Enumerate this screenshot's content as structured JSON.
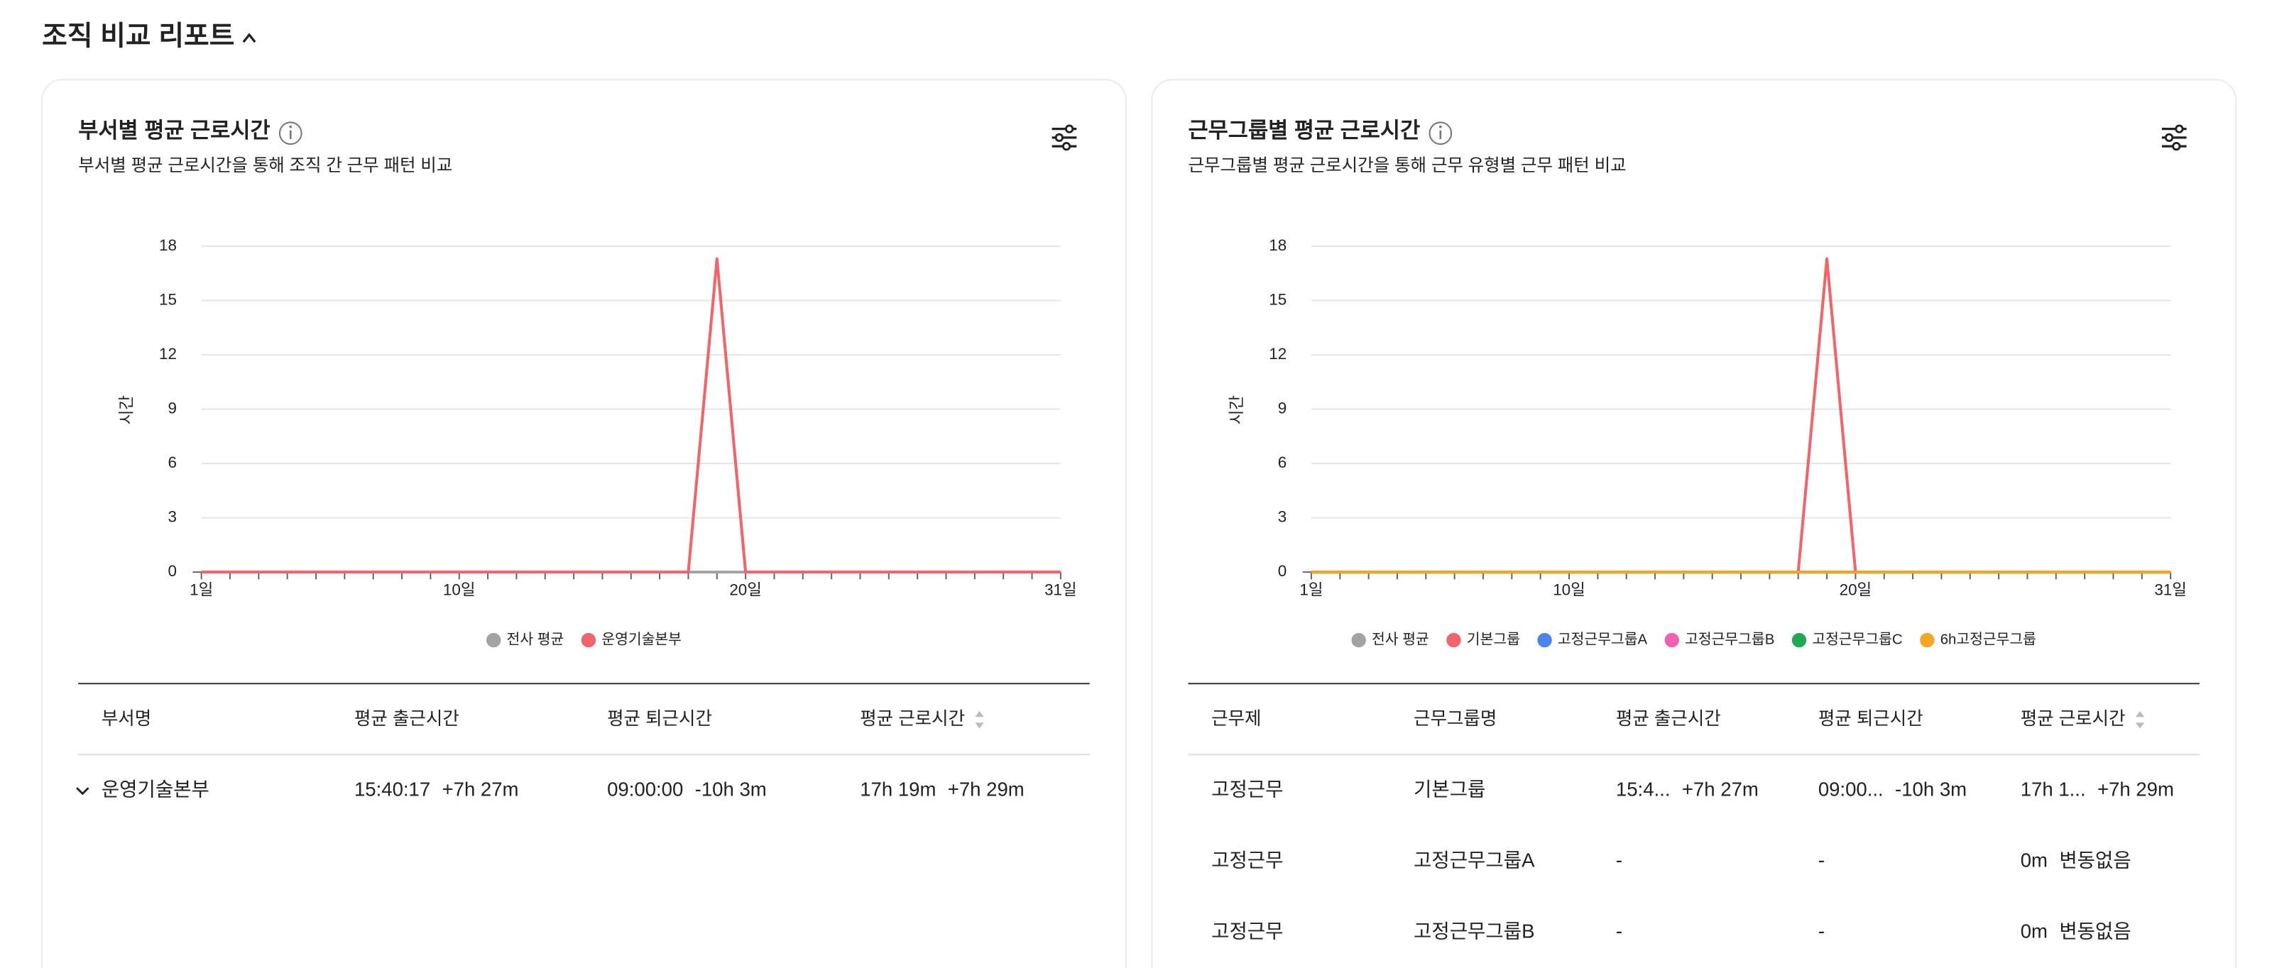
{
  "page": {
    "title": "조직 비교 리포트"
  },
  "chart_data": [
    {
      "type": "line",
      "title": "부서별 평균 근로시간",
      "subtitle": "부서별 평균 근로시간을 통해 조직 간 근무 패턴 비교",
      "y_label": "시간",
      "x": [
        1,
        2,
        3,
        4,
        5,
        6,
        7,
        8,
        9,
        10,
        11,
        12,
        13,
        14,
        15,
        16,
        17,
        18,
        19,
        20,
        21,
        22,
        23,
        24,
        25,
        26,
        27,
        28,
        29,
        30,
        31
      ],
      "xlim": [
        1,
        31
      ],
      "xticks": [
        {
          "value": 1,
          "label": "1일"
        },
        {
          "value": 10,
          "label": "10일"
        },
        {
          "value": 20,
          "label": "20일"
        },
        {
          "value": 31,
          "label": "31일"
        }
      ],
      "ylim": [
        0,
        18
      ],
      "yticks": [
        0,
        3,
        6,
        9,
        12,
        15,
        18
      ],
      "grid": true,
      "legend": "bottom",
      "series": [
        {
          "name": "전사 평균",
          "color": "#a3a3a3",
          "values": [
            0,
            0,
            0,
            0,
            0,
            0,
            0,
            0,
            0,
            0,
            0,
            0,
            0,
            0,
            0,
            0,
            0,
            0,
            0,
            0,
            0,
            0,
            0,
            0,
            0,
            0,
            0,
            0,
            0,
            0,
            0
          ]
        },
        {
          "name": "운영기술본부",
          "color": "#f0646a",
          "values": [
            0,
            0,
            0,
            0,
            0,
            0,
            0,
            0,
            0,
            0,
            0,
            0,
            0,
            0,
            0,
            0,
            0,
            0,
            17.3,
            0,
            0,
            0,
            0,
            0,
            0,
            0,
            0,
            0,
            0,
            0,
            0
          ]
        }
      ],
      "table": {
        "expandable": true,
        "columns": [
          "부서명",
          "평균 출근시간",
          "평균 퇴근시간",
          "평균 근로시간"
        ],
        "rows": [
          [
            {
              "value": "운영기술본부"
            },
            {
              "value": "15:40:17",
              "diff": "+7h 27m"
            },
            {
              "value": "09:00:00",
              "diff": "-10h 3m"
            },
            {
              "value": "17h 19m",
              "diff": "+7h 29m"
            }
          ]
        ]
      }
    },
    {
      "type": "line",
      "title": "근무그룹별 평균 근로시간",
      "subtitle": "근무그룹별 평균 근로시간을 통해 근무 유형별 근무 패턴 비교",
      "y_label": "시간",
      "x": [
        1,
        2,
        3,
        4,
        5,
        6,
        7,
        8,
        9,
        10,
        11,
        12,
        13,
        14,
        15,
        16,
        17,
        18,
        19,
        20,
        21,
        22,
        23,
        24,
        25,
        26,
        27,
        28,
        29,
        30,
        31
      ],
      "xlim": [
        1,
        31
      ],
      "xticks": [
        {
          "value": 1,
          "label": "1일"
        },
        {
          "value": 10,
          "label": "10일"
        },
        {
          "value": 20,
          "label": "20일"
        },
        {
          "value": 31,
          "label": "31일"
        }
      ],
      "ylim": [
        0,
        18
      ],
      "yticks": [
        0,
        3,
        6,
        9,
        12,
        15,
        18
      ],
      "grid": true,
      "legend": "bottom",
      "series": [
        {
          "name": "전사 평균",
          "color": "#a3a3a3",
          "values": [
            0,
            0,
            0,
            0,
            0,
            0,
            0,
            0,
            0,
            0,
            0,
            0,
            0,
            0,
            0,
            0,
            0,
            0,
            0,
            0,
            0,
            0,
            0,
            0,
            0,
            0,
            0,
            0,
            0,
            0,
            0
          ]
        },
        {
          "name": "기본그룹",
          "color": "#f0646a",
          "values": [
            0,
            0,
            0,
            0,
            0,
            0,
            0,
            0,
            0,
            0,
            0,
            0,
            0,
            0,
            0,
            0,
            0,
            0,
            17.3,
            0,
            0,
            0,
            0,
            0,
            0,
            0,
            0,
            0,
            0,
            0,
            0
          ]
        },
        {
          "name": "고정근무그룹A",
          "color": "#4a86e8",
          "values": [
            0,
            0,
            0,
            0,
            0,
            0,
            0,
            0,
            0,
            0,
            0,
            0,
            0,
            0,
            0,
            0,
            0,
            0,
            0,
            0,
            0,
            0,
            0,
            0,
            0,
            0,
            0,
            0,
            0,
            0,
            0
          ]
        },
        {
          "name": "고정근무그룹B",
          "color": "#f062b0",
          "values": [
            0,
            0,
            0,
            0,
            0,
            0,
            0,
            0,
            0,
            0,
            0,
            0,
            0,
            0,
            0,
            0,
            0,
            0,
            0,
            0,
            0,
            0,
            0,
            0,
            0,
            0,
            0,
            0,
            0,
            0,
            0
          ]
        },
        {
          "name": "고정근무그룹C",
          "color": "#22a852",
          "values": [
            0,
            0,
            0,
            0,
            0,
            0,
            0,
            0,
            0,
            0,
            0,
            0,
            0,
            0,
            0,
            0,
            0,
            0,
            0,
            0,
            0,
            0,
            0,
            0,
            0,
            0,
            0,
            0,
            0,
            0,
            0
          ]
        },
        {
          "name": "6h고정근무그룹",
          "color": "#f5a623",
          "values": [
            0,
            0,
            0,
            0,
            0,
            0,
            0,
            0,
            0,
            0,
            0,
            0,
            0,
            0,
            0,
            0,
            0,
            0,
            0,
            0,
            0,
            0,
            0,
            0,
            0,
            0,
            0,
            0,
            0,
            0,
            0
          ]
        }
      ],
      "table": {
        "expandable": false,
        "columns": [
          "근무제",
          "근무그룹명",
          "평균 출근시간",
          "평균 퇴근시간",
          "평균 근로시간"
        ],
        "rows": [
          [
            {
              "value": "고정근무"
            },
            {
              "value": "기본그룹"
            },
            {
              "value": "15:4...",
              "diff": "+7h 27m"
            },
            {
              "value": "09:00...",
              "diff": "-10h 3m"
            },
            {
              "value": "17h 1...",
              "diff": "+7h 29m"
            }
          ],
          [
            {
              "value": "고정근무"
            },
            {
              "value": "고정근무그룹A"
            },
            {
              "value": "-"
            },
            {
              "value": "-"
            },
            {
              "value": "0m",
              "diff": "변동없음"
            }
          ],
          [
            {
              "value": "고정근무"
            },
            {
              "value": "고정근무그룹B"
            },
            {
              "value": "-"
            },
            {
              "value": "-"
            },
            {
              "value": "0m",
              "diff": "변동없음"
            }
          ]
        ]
      }
    }
  ]
}
